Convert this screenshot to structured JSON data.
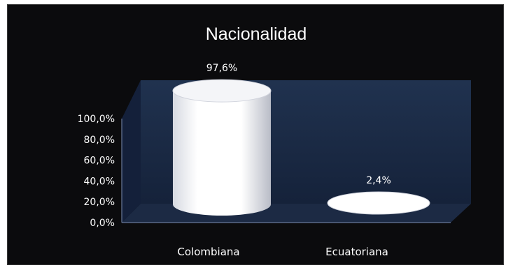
{
  "chart_data": {
    "type": "bar",
    "style": "3d-cylinder",
    "title": "Nacionalidad",
    "categories": [
      "Colombiana",
      "Ecuatoriana"
    ],
    "values": [
      97.6,
      2.4
    ],
    "data_labels": [
      "97,6%",
      "2,4%"
    ],
    "ytick_labels": [
      "100,0%",
      "80,0%",
      "60,0%",
      "40,0%",
      "20,0%",
      "0,0%"
    ],
    "yticks": [
      100,
      80,
      60,
      40,
      20,
      0
    ],
    "ylim": [
      0,
      100
    ],
    "xlabel": "",
    "ylabel": "",
    "grid": false,
    "legend": "none",
    "colors": {
      "background": "#0b0b0d",
      "wall": "#1b2a45",
      "floor": "#1c2a44",
      "bar": "#ffffff",
      "bar_shade": "#c9ccd6",
      "text": "#ffffff",
      "axis": "#7c8fb5"
    }
  }
}
